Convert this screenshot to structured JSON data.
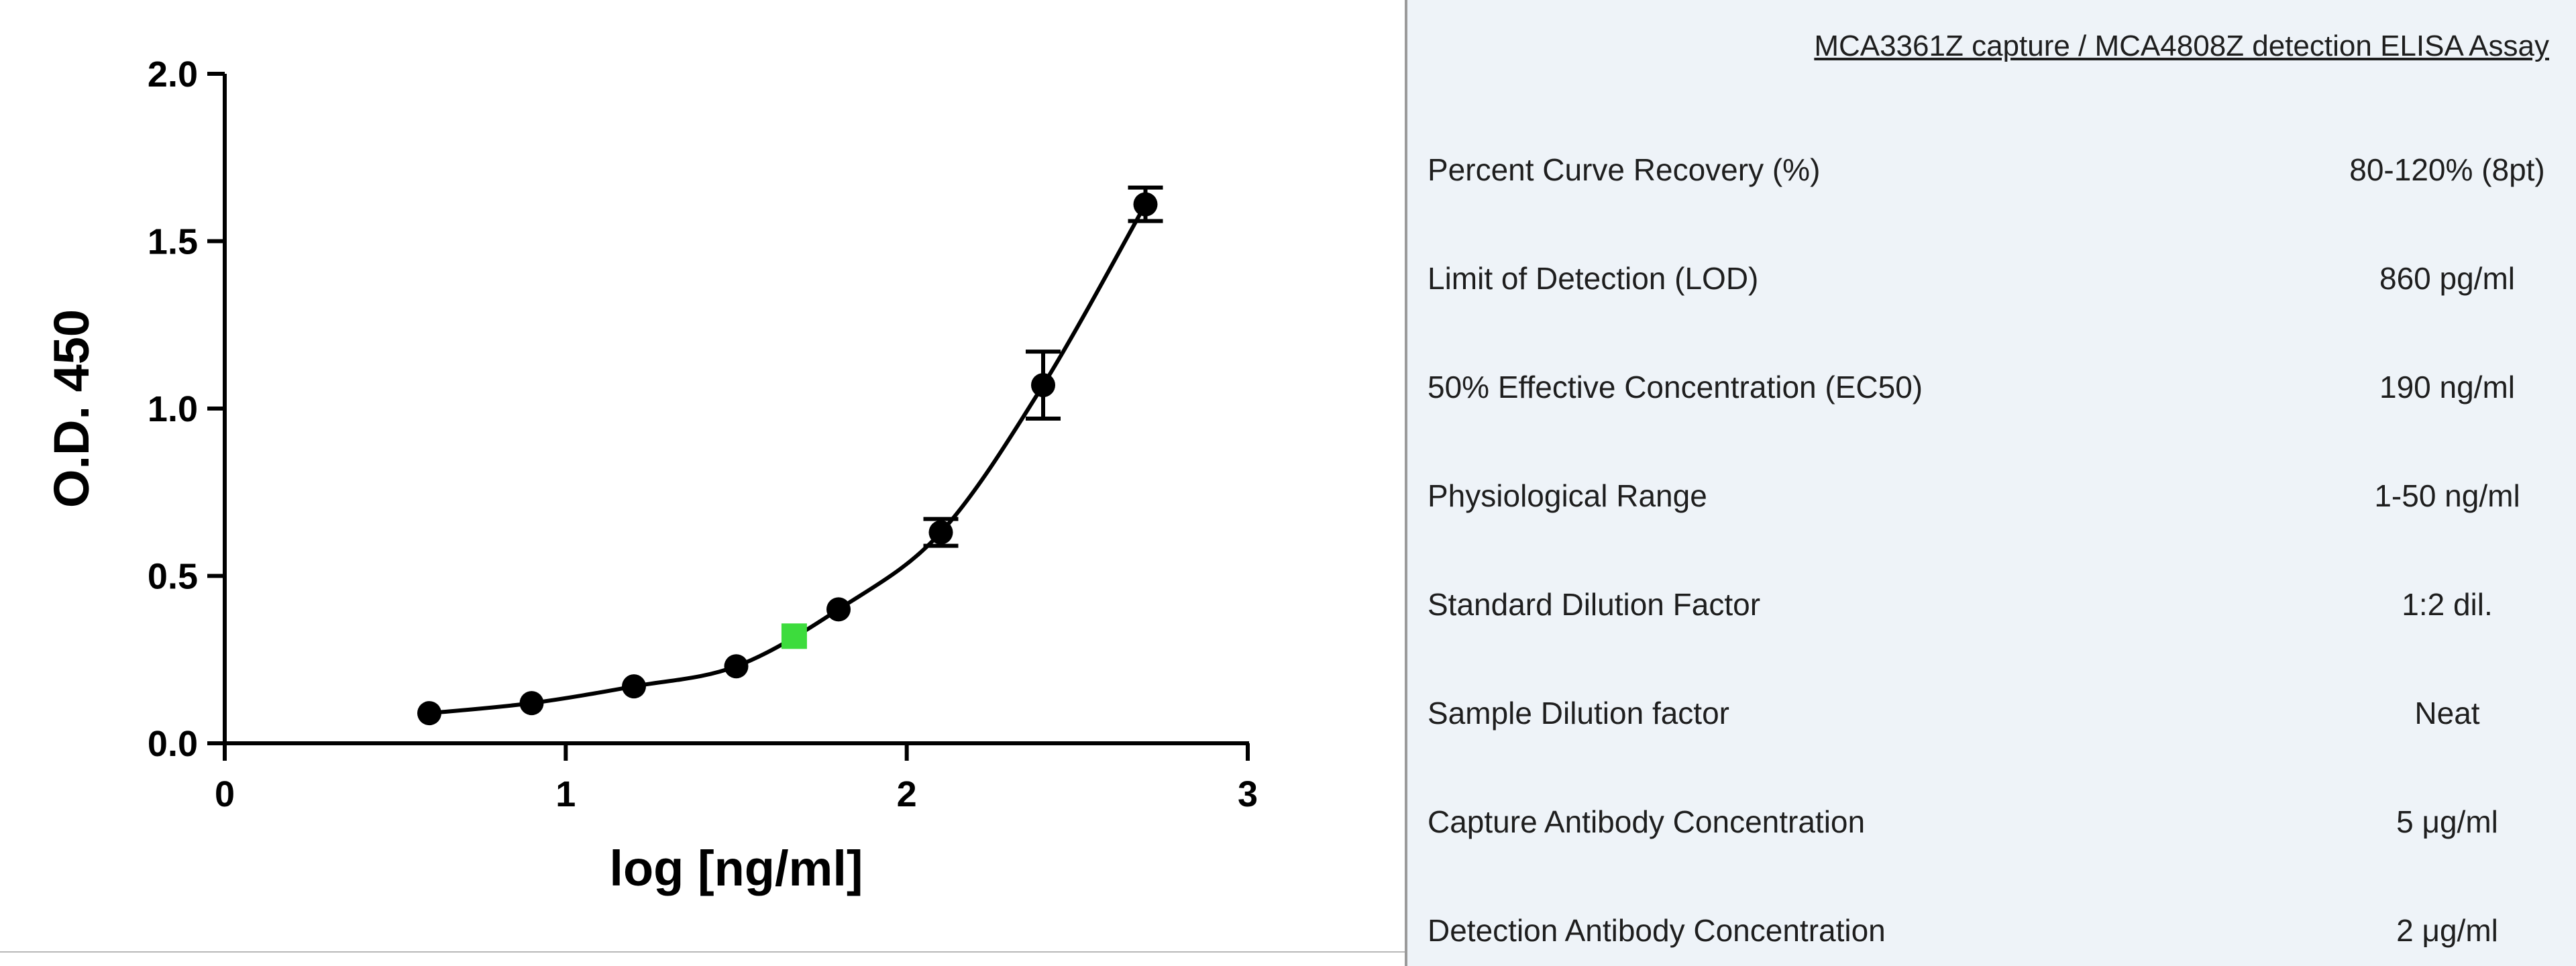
{
  "chart_data": {
    "type": "scatter",
    "xlabel": "log [ng/ml]",
    "ylabel": "O.D. 450",
    "xlim": [
      0,
      3
    ],
    "ylim": [
      0,
      2.0
    ],
    "x_ticks": [
      "0",
      "1",
      "2",
      "3"
    ],
    "y_ticks": [
      "0.0",
      "0.5",
      "1.0",
      "1.5",
      "2.0"
    ],
    "grid": false,
    "series": [
      {
        "marker": "circle",
        "color": "#000000",
        "fit_line": true,
        "x": [
          0.6,
          0.9,
          1.2,
          1.5,
          1.8,
          2.1,
          2.4,
          2.7
        ],
        "y": [
          0.09,
          0.12,
          0.17,
          0.23,
          0.4,
          0.63,
          1.07,
          1.61
        ],
        "error": [
          0.0,
          0.0,
          0.0,
          0.0,
          0.0,
          0.04,
          0.1,
          0.05
        ]
      },
      {
        "marker": "square",
        "color": "#3ddc3d",
        "x": [
          1.67
        ],
        "y": [
          0.32
        ]
      }
    ]
  },
  "table": {
    "title": "MCA3361Z capture / MCA4808Z detection ELISA Assay",
    "rows": [
      {
        "name": "Percent Curve Recovery (%)",
        "value": "80-120% (8pt)"
      },
      {
        "name": "Limit of Detection (LOD)",
        "value": "860 pg/ml"
      },
      {
        "name": "50% Effective Concentration (EC50)",
        "value": "190 ng/ml"
      },
      {
        "name": "Physiological Range",
        "value": "1-50 ng/ml"
      },
      {
        "name": "Standard Dilution Factor",
        "value": "1:2 dil."
      },
      {
        "name": "Sample Dilution factor",
        "value": "Neat"
      },
      {
        "name": "Capture Antibody Concentration",
        "value": "5 μg/ml"
      },
      {
        "name": "Detection Antibody Concentration",
        "value": "2 μg/ml"
      }
    ]
  }
}
